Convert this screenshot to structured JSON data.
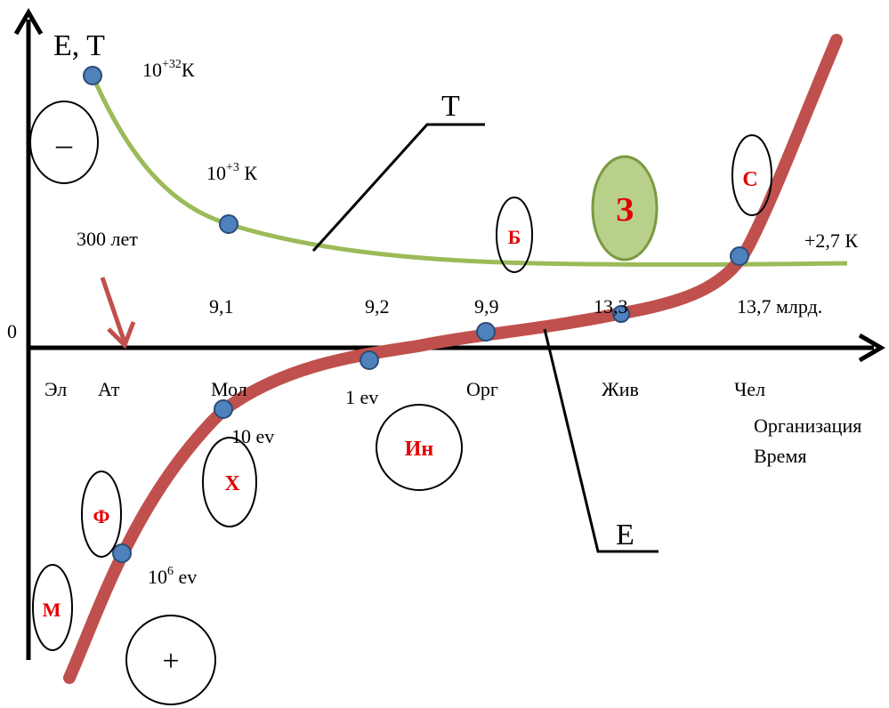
{
  "axes": {
    "y_label": "E, T",
    "x_label_line1": "Организация",
    "x_label_line2": "Время",
    "origin": "0"
  },
  "temperature_labels": {
    "t1_base": "10",
    "t1_exp": "+32",
    "t1_unit": "К",
    "t2_base": "10",
    "t2_exp": "+3",
    "t2_unit": " К",
    "t3": "+2,7 К"
  },
  "time_labels": {
    "years": "300 лет",
    "t_91": "9,1",
    "t_92": "9,2",
    "t_99": "9,9",
    "t_133": "13,3",
    "t_137": "13,7 млрд."
  },
  "x_categories": [
    "Эл",
    "Ат",
    "Мол",
    "Орг",
    "Жив",
    "Чел"
  ],
  "energy_labels": {
    "ev1": "1 ev",
    "ev10": "10 ev",
    "ev6_base": "10",
    "ev6_exp": "6",
    "ev6_unit": " ev"
  },
  "curve_labels": {
    "T": "T",
    "E": "E"
  },
  "circles": {
    "minus": "–",
    "plus": "+",
    "M": "М",
    "F": "Ф",
    "X": "Х",
    "In": "Ин",
    "B": "Б",
    "Z": "З",
    "C": "С"
  },
  "colors": {
    "temperature_curve": "#9bbb59",
    "energy_curve": "#c0504d",
    "point": "#4f81bd",
    "point_stroke": "#2c4d75",
    "z_fill": "#b8d08a",
    "arrow": "#c0504d",
    "red_text": "#e00000"
  }
}
